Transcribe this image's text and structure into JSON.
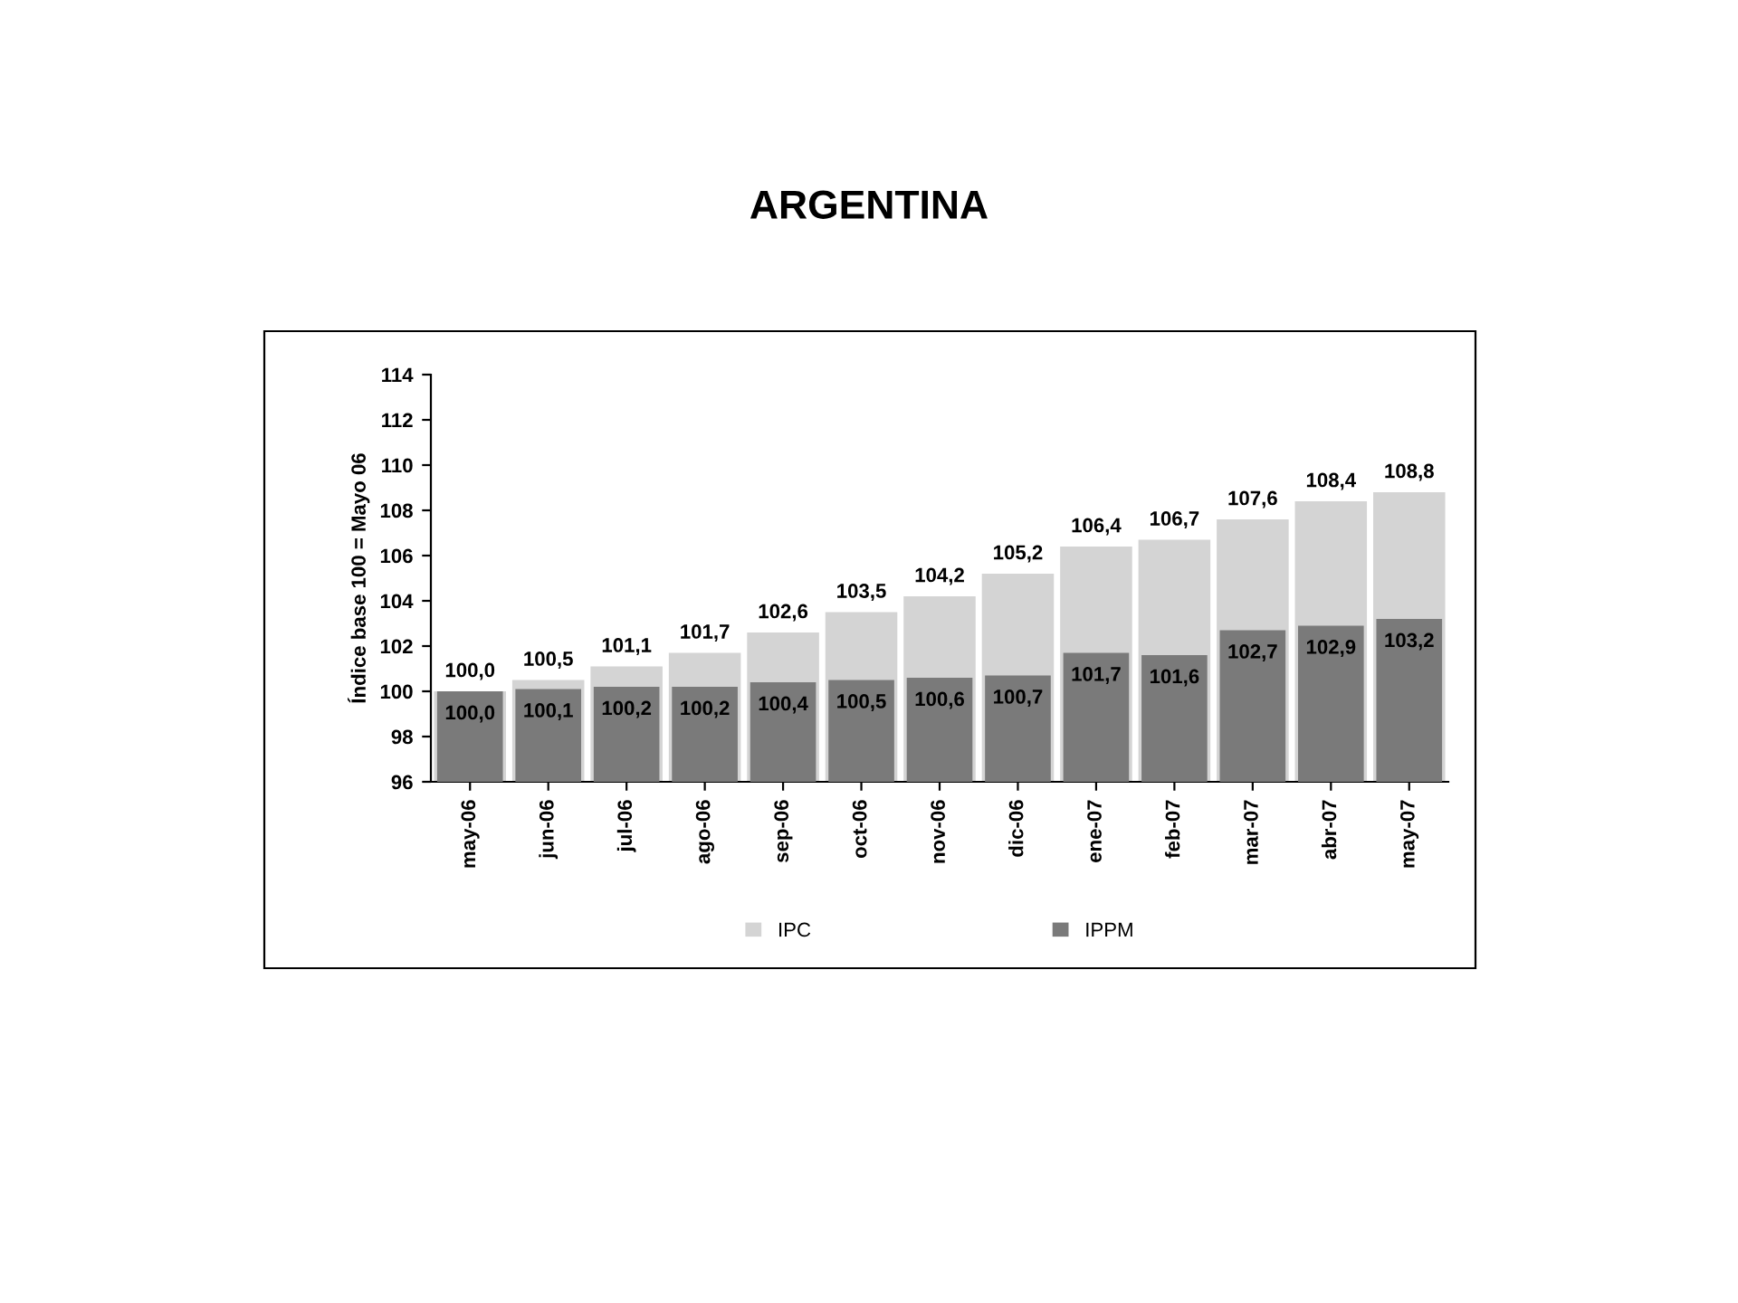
{
  "chart_data": {
    "type": "bar",
    "title": "ARGENTINA",
    "ylabel": "Índice base 100 = Mayo 06",
    "categories": [
      "may-06",
      "jun-06",
      "jul-06",
      "ago-06",
      "sep-06",
      "oct-06",
      "nov-06",
      "dic-06",
      "ene-07",
      "feb-07",
      "mar-07",
      "abr-07",
      "may-07"
    ],
    "series": [
      {
        "name": "IPC",
        "color": "#d4d4d4",
        "values": [
          100.0,
          100.5,
          101.1,
          101.7,
          102.6,
          103.5,
          104.2,
          105.2,
          106.4,
          106.7,
          107.6,
          108.4,
          108.8
        ],
        "value_labels": [
          "100,0",
          "100,5",
          "101,1",
          "101,7",
          "102,6",
          "103,5",
          "104,2",
          "105,2",
          "106,4",
          "106,7",
          "107,6",
          "108,4",
          "108,8"
        ]
      },
      {
        "name": "IPPM",
        "color": "#7a7a7a",
        "values": [
          100.0,
          100.1,
          100.2,
          100.2,
          100.4,
          100.5,
          100.6,
          100.7,
          101.7,
          101.6,
          102.7,
          102.9,
          103.2
        ],
        "value_labels": [
          "100,0",
          "100,1",
          "100,2",
          "100,2",
          "100,4",
          "100,5",
          "100,6",
          "100,7",
          "101,7",
          "101,6",
          "102,7",
          "102,9",
          "103,2"
        ]
      }
    ],
    "ylim": [
      96,
      114
    ],
    "yticks": [
      96,
      98,
      100,
      102,
      104,
      106,
      108,
      110,
      112,
      114
    ],
    "grid": false,
    "legend": "bottom"
  }
}
